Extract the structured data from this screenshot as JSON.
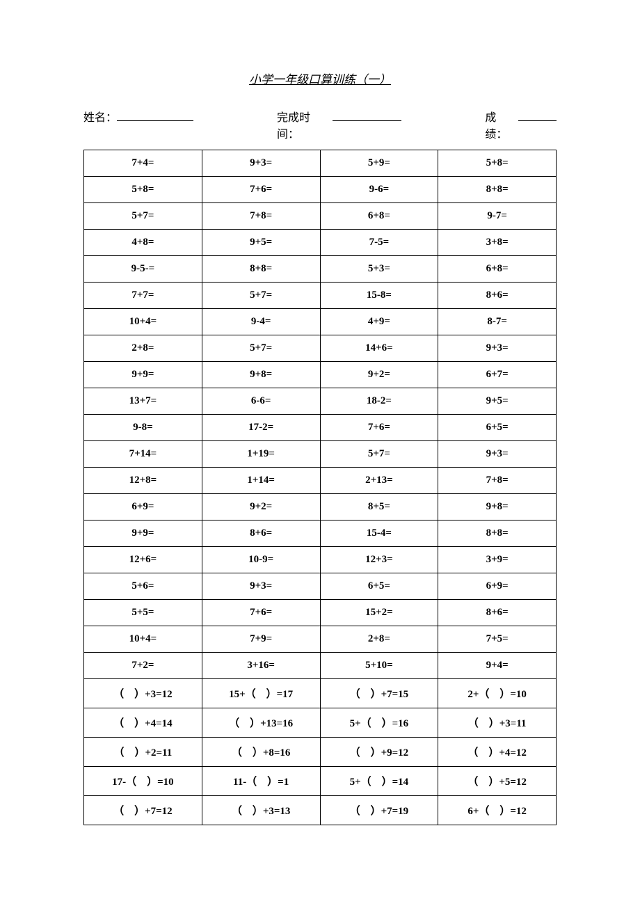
{
  "title": "小学一年级口算训练（一）",
  "header": {
    "name_label": "姓名：",
    "time_label": "完成时间：",
    "score_label": "成绩：",
    "fontsize": 16,
    "color": "#000000"
  },
  "table": {
    "border_color": "#000000",
    "cell_fontsize": 15,
    "cell_fontweight": "bold",
    "cell_font": "Times New Roman",
    "text_color": "#000000",
    "background_color": "#ffffff",
    "columns": 4,
    "rows": [
      [
        "7+4=",
        "9+3=",
        "5+9=",
        "5+8="
      ],
      [
        "5+8=",
        "7+6=",
        "9-6=",
        "8+8="
      ],
      [
        "5+7=",
        "7+8=",
        "6+8=",
        "9-7="
      ],
      [
        "4+8=",
        "9+5=",
        "7-5=",
        "3+8="
      ],
      [
        "9-5-=",
        "8+8=",
        "5+3=",
        "6+8="
      ],
      [
        "7+7=",
        "5+7=",
        "15-8=",
        "8+6="
      ],
      [
        "10+4=",
        "9-4=",
        "4+9=",
        "8-7="
      ],
      [
        "2+8=",
        "5+7=",
        "14+6=",
        "9+3="
      ],
      [
        "9+9=",
        "9+8=",
        "9+2=",
        "6+7="
      ],
      [
        "13+7=",
        "6-6=",
        "18-2=",
        "9+5="
      ],
      [
        "9-8=",
        "17-2=",
        "7+6=",
        "6+5="
      ],
      [
        "7+14=",
        "1+19=",
        "5+7=",
        "9+3="
      ],
      [
        "12+8=",
        "1+14=",
        "2+13=",
        "7+8="
      ],
      [
        "6+9=",
        "9+2=",
        "8+5=",
        "9+8="
      ],
      [
        "9+9=",
        "8+6=",
        "15-4=",
        "8+8="
      ],
      [
        "12+6=",
        "10-9=",
        "12+3=",
        "3+9="
      ],
      [
        "5+6=",
        "9+3=",
        "6+5=",
        "6+9="
      ],
      [
        "5+5=",
        "7+6=",
        "15+2=",
        "8+6="
      ],
      [
        "10+4=",
        "7+9=",
        "2+8=",
        "7+5="
      ],
      [
        "7+2=",
        "3+16=",
        "5+10=",
        "9+4="
      ],
      [
        "（　）+3=12",
        "15+（　）=17",
        "（　）+7=15",
        "2+（　）=10"
      ],
      [
        "（　）+4=14",
        "（　）+13=16",
        "5+（　）=16",
        "（　）+3=11"
      ],
      [
        "（　）+2=11",
        "（　）+8=16",
        "（　）+9=12",
        "（　）+4=12"
      ],
      [
        "17-（　）=10",
        "11-（　）=1",
        "5+（　）=14",
        "（　）+5=12"
      ],
      [
        "（　）+7=12",
        "（　）+3=13",
        "（　）+7=19",
        "6+（　）=12"
      ]
    ]
  }
}
